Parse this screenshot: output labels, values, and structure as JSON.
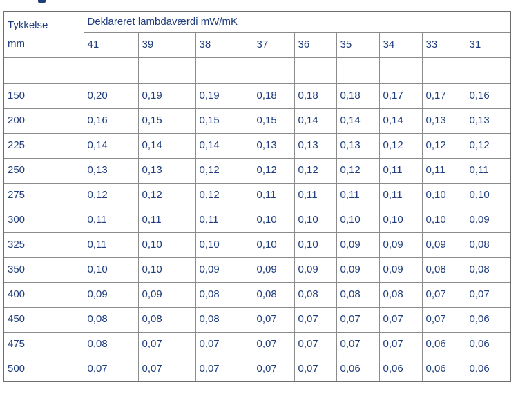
{
  "colors": {
    "text_blue": "#1f3d7c",
    "grid_border": "#8c8c8c",
    "outer_border": "#6e6e6e",
    "background": "#ffffff"
  },
  "chart_data": {
    "type": "table",
    "title": "",
    "corner_header": {
      "line1": "Tykkelse",
      "line2": "mm"
    },
    "column_group_label": "Deklareret lambdaværdi mW/mK",
    "columns": [
      "41",
      "39",
      "38",
      "37",
      "36",
      "35",
      "34",
      "33",
      "31"
    ],
    "rows": [
      {
        "thickness": "150",
        "values": [
          "0,20",
          "0,19",
          "0,19",
          "0,18",
          "0,18",
          "0,18",
          "0,17",
          "0,17",
          "0,16"
        ]
      },
      {
        "thickness": "200",
        "values": [
          "0,16",
          "0,15",
          "0,15",
          "0,15",
          "0,14",
          "0,14",
          "0,14",
          "0,13",
          "0,13"
        ]
      },
      {
        "thickness": "225",
        "values": [
          "0,14",
          "0,14",
          "0,14",
          "0,13",
          "0,13",
          "0,13",
          "0,12",
          "0,12",
          "0,12"
        ]
      },
      {
        "thickness": "250",
        "values": [
          "0,13",
          "0,13",
          "0,12",
          "0,12",
          "0,12",
          "0,12",
          "0,11",
          "0,11",
          "0,11"
        ]
      },
      {
        "thickness": "275",
        "values": [
          "0,12",
          "0,12",
          "0,12",
          "0,11",
          "0,11",
          "0,11",
          "0,11",
          "0,10",
          "0,10"
        ]
      },
      {
        "thickness": "300",
        "values": [
          "0,11",
          "0,11",
          "0,11",
          "0,10",
          "0,10",
          "0,10",
          "0,10",
          "0,10",
          "0,09"
        ]
      },
      {
        "thickness": "325",
        "values": [
          "0,11",
          "0,10",
          "0,10",
          "0,10",
          "0,10",
          "0,09",
          "0,09",
          "0,09",
          "0,08"
        ]
      },
      {
        "thickness": "350",
        "values": [
          "0,10",
          "0,10",
          "0,09",
          "0,09",
          "0,09",
          "0,09",
          "0,09",
          "0,08",
          "0,08"
        ]
      },
      {
        "thickness": "400",
        "values": [
          "0,09",
          "0,09",
          "0,08",
          "0,08",
          "0,08",
          "0,08",
          "0,08",
          "0,07",
          "0,07"
        ]
      },
      {
        "thickness": "450",
        "values": [
          "0,08",
          "0,08",
          "0,08",
          "0,07",
          "0,07",
          "0,07",
          "0,07",
          "0,07",
          "0,06"
        ]
      },
      {
        "thickness": "475",
        "values": [
          "0,08",
          "0,07",
          "0,07",
          "0,07",
          "0,07",
          "0,07",
          "0,07",
          "0,06",
          "0,06"
        ]
      },
      {
        "thickness": "500",
        "values": [
          "0,07",
          "0,07",
          "0,07",
          "0,07",
          "0,07",
          "0,06",
          "0,06",
          "0,06",
          "0,06"
        ]
      }
    ]
  }
}
